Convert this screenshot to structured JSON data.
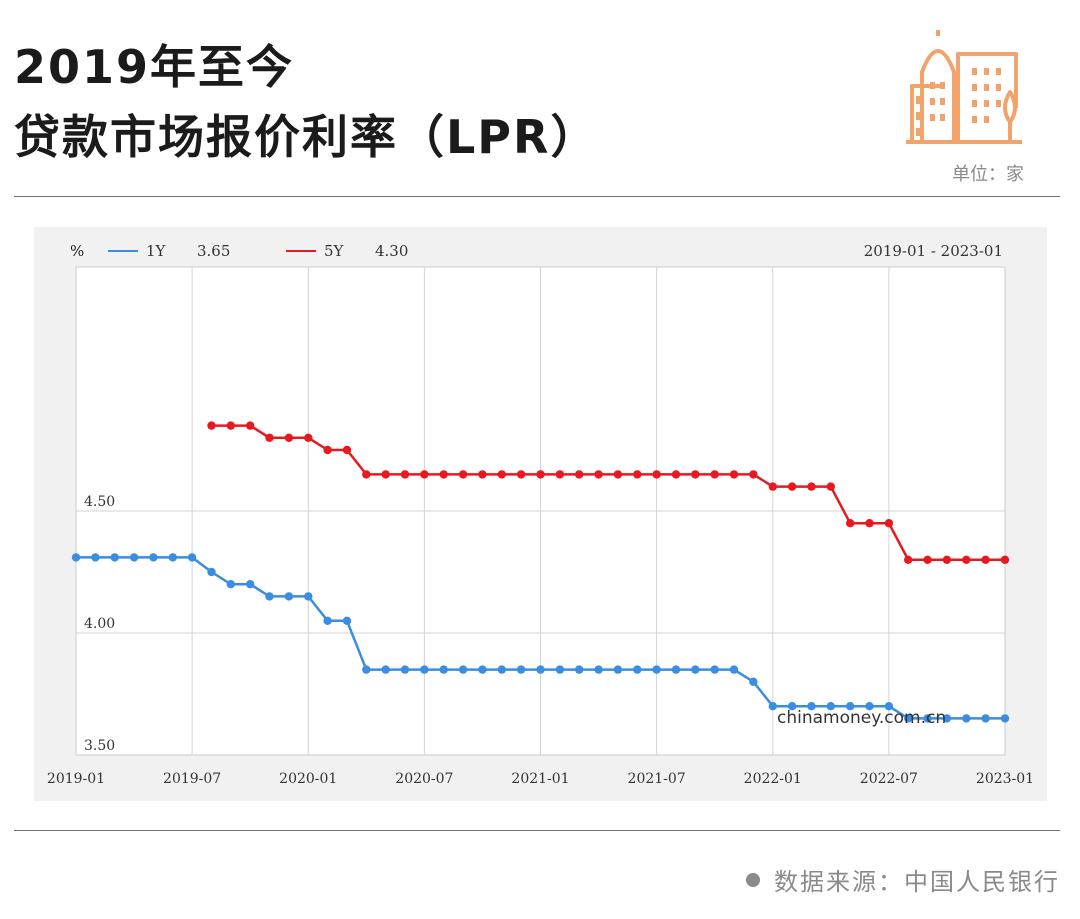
{
  "header": {
    "title_line1": "2019年至今",
    "title_line2": "贷款市场报价利率（LPR）",
    "unit_label": "单位：家"
  },
  "footer": {
    "source_label": "数据来源：中国人民银行"
  },
  "colors": {
    "series_1y": "#3a8de0",
    "series_5y": "#e8191e",
    "grid": "#cfd3da",
    "panel_bg": "#f1f1f1",
    "icon": "#f2a26b"
  },
  "chart_data": {
    "type": "line",
    "title": "",
    "xlabel": "",
    "ylabel": "%",
    "date_range": "2019-01 - 2023-01",
    "watermark": "chinamoney.com.cn",
    "x_ticks": [
      "2019-01",
      "2019-07",
      "2020-01",
      "2020-07",
      "2021-01",
      "2021-07",
      "2022-01",
      "2022-07",
      "2023-01"
    ],
    "y_ticks": [
      "3.50",
      "4.00",
      "4.50"
    ],
    "ylim": [
      3.5,
      5.5
    ],
    "grid": true,
    "legend_position": "top-left",
    "series": [
      {
        "name": "1Y",
        "latest_value": "3.65",
        "color": "#3a8de0",
        "points": [
          [
            "2019-01",
            4.31
          ],
          [
            "2019-02",
            4.31
          ],
          [
            "2019-03",
            4.31
          ],
          [
            "2019-04",
            4.31
          ],
          [
            "2019-05",
            4.31
          ],
          [
            "2019-06",
            4.31
          ],
          [
            "2019-07",
            4.31
          ],
          [
            "2019-08",
            4.25
          ],
          [
            "2019-09",
            4.2
          ],
          [
            "2019-10",
            4.2
          ],
          [
            "2019-11",
            4.15
          ],
          [
            "2019-12",
            4.15
          ],
          [
            "2020-01",
            4.15
          ],
          [
            "2020-02",
            4.05
          ],
          [
            "2020-03",
            4.05
          ],
          [
            "2020-04",
            3.85
          ],
          [
            "2020-05",
            3.85
          ],
          [
            "2020-06",
            3.85
          ],
          [
            "2020-07",
            3.85
          ],
          [
            "2020-08",
            3.85
          ],
          [
            "2020-09",
            3.85
          ],
          [
            "2020-10",
            3.85
          ],
          [
            "2020-11",
            3.85
          ],
          [
            "2020-12",
            3.85
          ],
          [
            "2021-01",
            3.85
          ],
          [
            "2021-02",
            3.85
          ],
          [
            "2021-03",
            3.85
          ],
          [
            "2021-04",
            3.85
          ],
          [
            "2021-05",
            3.85
          ],
          [
            "2021-06",
            3.85
          ],
          [
            "2021-07",
            3.85
          ],
          [
            "2021-08",
            3.85
          ],
          [
            "2021-09",
            3.85
          ],
          [
            "2021-10",
            3.85
          ],
          [
            "2021-11",
            3.85
          ],
          [
            "2021-12",
            3.8
          ],
          [
            "2022-01",
            3.7
          ],
          [
            "2022-02",
            3.7
          ],
          [
            "2022-03",
            3.7
          ],
          [
            "2022-04",
            3.7
          ],
          [
            "2022-05",
            3.7
          ],
          [
            "2022-06",
            3.7
          ],
          [
            "2022-07",
            3.7
          ],
          [
            "2022-08",
            3.65
          ],
          [
            "2022-09",
            3.65
          ],
          [
            "2022-10",
            3.65
          ],
          [
            "2022-11",
            3.65
          ],
          [
            "2022-12",
            3.65
          ],
          [
            "2023-01",
            3.65
          ]
        ]
      },
      {
        "name": "5Y",
        "latest_value": "4.30",
        "color": "#e8191e",
        "points": [
          [
            "2019-08",
            4.85
          ],
          [
            "2019-09",
            4.85
          ],
          [
            "2019-10",
            4.85
          ],
          [
            "2019-11",
            4.8
          ],
          [
            "2019-12",
            4.8
          ],
          [
            "2020-01",
            4.8
          ],
          [
            "2020-02",
            4.75
          ],
          [
            "2020-03",
            4.75
          ],
          [
            "2020-04",
            4.65
          ],
          [
            "2020-05",
            4.65
          ],
          [
            "2020-06",
            4.65
          ],
          [
            "2020-07",
            4.65
          ],
          [
            "2020-08",
            4.65
          ],
          [
            "2020-09",
            4.65
          ],
          [
            "2020-10",
            4.65
          ],
          [
            "2020-11",
            4.65
          ],
          [
            "2020-12",
            4.65
          ],
          [
            "2021-01",
            4.65
          ],
          [
            "2021-02",
            4.65
          ],
          [
            "2021-03",
            4.65
          ],
          [
            "2021-04",
            4.65
          ],
          [
            "2021-05",
            4.65
          ],
          [
            "2021-06",
            4.65
          ],
          [
            "2021-07",
            4.65
          ],
          [
            "2021-08",
            4.65
          ],
          [
            "2021-09",
            4.65
          ],
          [
            "2021-10",
            4.65
          ],
          [
            "2021-11",
            4.65
          ],
          [
            "2021-12",
            4.65
          ],
          [
            "2022-01",
            4.6
          ],
          [
            "2022-02",
            4.6
          ],
          [
            "2022-03",
            4.6
          ],
          [
            "2022-04",
            4.6
          ],
          [
            "2022-05",
            4.45
          ],
          [
            "2022-06",
            4.45
          ],
          [
            "2022-07",
            4.45
          ],
          [
            "2022-08",
            4.3
          ],
          [
            "2022-09",
            4.3
          ],
          [
            "2022-10",
            4.3
          ],
          [
            "2022-11",
            4.3
          ],
          [
            "2022-12",
            4.3
          ],
          [
            "2023-01",
            4.3
          ]
        ]
      }
    ]
  }
}
